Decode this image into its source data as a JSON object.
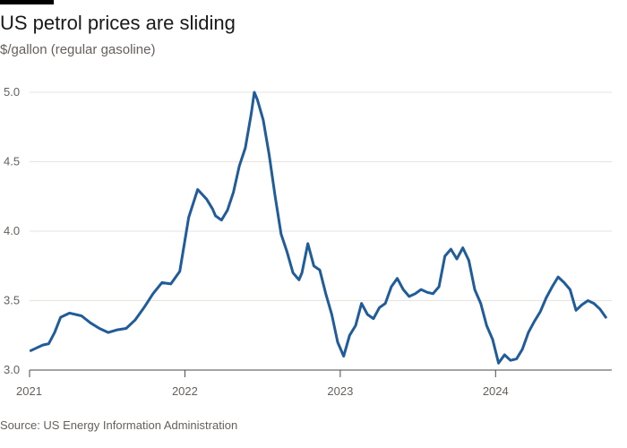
{
  "header": {
    "title": "US petrol prices are sliding",
    "subtitle": "$/gallon (regular gasoline)"
  },
  "footer": {
    "source": "Source: US Energy Information Administration"
  },
  "colors": {
    "line": "#1f5c99",
    "grid": "#e6e3df",
    "axis": "#4d4845"
  },
  "chart_data": {
    "type": "line",
    "title": "US petrol prices are sliding",
    "subtitle": "$/gallon (regular gasoline)",
    "xlabel": "",
    "ylabel": "$/gallon (regular gasoline)",
    "ylim": [
      3.0,
      5.0
    ],
    "yticks": [
      3.0,
      3.5,
      4.0,
      4.5,
      5.0
    ],
    "ytick_labels": [
      "3.0",
      "3.5",
      "4.0",
      "4.5",
      "5.0"
    ],
    "xlim": [
      "2021-01-01",
      "2024-09-30"
    ],
    "xticks": [
      "2021-01-01",
      "2022-01-01",
      "2023-01-01",
      "2024-01-01"
    ],
    "xtick_labels": [
      "2021",
      "2022",
      "2023",
      "2024"
    ],
    "grid": "horizontal",
    "legend": "none",
    "series": [
      {
        "x": [
          "2021-01-04",
          "2021-01-18",
          "2021-02-01",
          "2021-02-15",
          "2021-03-01",
          "2021-03-15",
          "2021-04-05",
          "2021-05-03",
          "2021-05-24",
          "2021-06-14",
          "2021-07-05",
          "2021-07-26",
          "2021-08-16",
          "2021-09-06",
          "2021-09-27",
          "2021-10-18",
          "2021-11-08",
          "2021-11-29",
          "2021-12-20",
          "2022-01-10",
          "2022-01-31",
          "2022-02-21",
          "2022-03-07",
          "2022-03-14",
          "2022-03-28",
          "2022-04-11",
          "2022-04-25",
          "2022-05-09",
          "2022-05-23",
          "2022-06-06",
          "2022-06-13",
          "2022-06-20",
          "2022-07-04",
          "2022-07-18",
          "2022-08-01",
          "2022-08-15",
          "2022-08-29",
          "2022-09-12",
          "2022-09-26",
          "2022-10-03",
          "2022-10-17",
          "2022-10-31",
          "2022-11-14",
          "2022-11-28",
          "2022-12-12",
          "2022-12-26",
          "2023-01-09",
          "2023-01-23",
          "2023-02-06",
          "2023-02-20",
          "2023-03-06",
          "2023-03-20",
          "2023-04-03",
          "2023-04-17",
          "2023-05-01",
          "2023-05-15",
          "2023-05-29",
          "2023-06-12",
          "2023-06-26",
          "2023-07-10",
          "2023-07-24",
          "2023-08-07",
          "2023-08-21",
          "2023-09-04",
          "2023-09-18",
          "2023-10-02",
          "2023-10-16",
          "2023-10-30",
          "2023-11-13",
          "2023-11-27",
          "2023-12-11",
          "2023-12-25",
          "2024-01-08",
          "2024-01-22",
          "2024-02-05",
          "2024-02-19",
          "2024-03-04",
          "2024-03-18",
          "2024-04-01",
          "2024-04-15",
          "2024-04-29",
          "2024-05-13",
          "2024-05-27",
          "2024-06-10",
          "2024-06-24",
          "2024-07-08",
          "2024-07-22",
          "2024-08-05",
          "2024-08-19",
          "2024-09-02",
          "2024-09-16"
        ],
        "y": [
          3.14,
          3.16,
          3.18,
          3.19,
          3.27,
          3.38,
          3.41,
          3.39,
          3.34,
          3.3,
          3.27,
          3.29,
          3.3,
          3.36,
          3.45,
          3.55,
          3.63,
          3.62,
          3.71,
          4.1,
          4.3,
          4.23,
          4.16,
          4.11,
          4.08,
          4.15,
          4.28,
          4.47,
          4.6,
          4.85,
          5.0,
          4.95,
          4.8,
          4.55,
          4.25,
          3.98,
          3.85,
          3.7,
          3.65,
          3.7,
          3.91,
          3.75,
          3.72,
          3.55,
          3.4,
          3.2,
          3.1,
          3.25,
          3.32,
          3.48,
          3.4,
          3.37,
          3.45,
          3.48,
          3.6,
          3.66,
          3.58,
          3.53,
          3.55,
          3.58,
          3.56,
          3.55,
          3.6,
          3.82,
          3.87,
          3.8,
          3.88,
          3.79,
          3.58,
          3.48,
          3.32,
          3.22,
          3.05,
          3.11,
          3.07,
          3.08,
          3.15,
          3.27,
          3.35,
          3.42,
          3.52,
          3.6,
          3.67,
          3.63,
          3.58,
          3.43,
          3.47,
          3.5,
          3.48,
          3.44,
          3.38
        ]
      }
    ]
  }
}
